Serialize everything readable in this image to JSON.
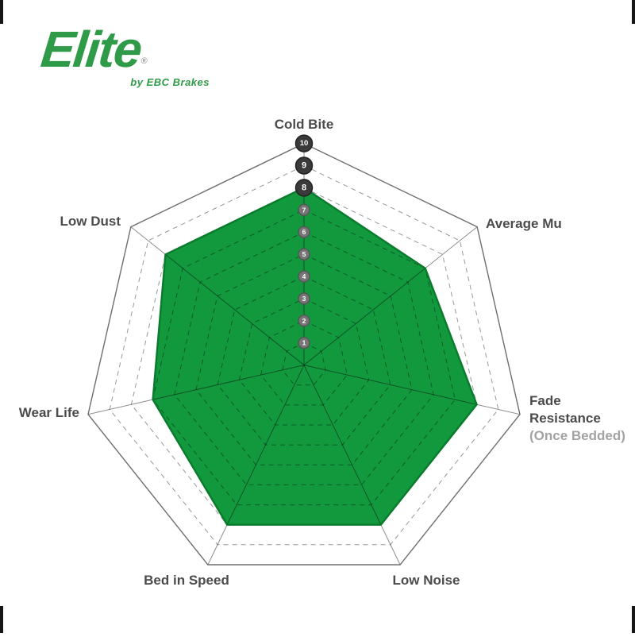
{
  "page": {
    "background": "#ffffff"
  },
  "logo": {
    "brand": "Elite",
    "registered": "®",
    "tagline": "by EBC Brakes",
    "color": "#2f9b48"
  },
  "chart_data": {
    "type": "radar",
    "title": "",
    "axes": [
      {
        "label": "Cold Bite",
        "value": 8
      },
      {
        "label": "Average Mu",
        "value": 7
      },
      {
        "label": "Fade Resistance",
        "sublabel": "(Once Bedded)",
        "value": 8
      },
      {
        "label": "Low Noise",
        "value": 8
      },
      {
        "label": "Bed in Speed",
        "value": 8
      },
      {
        "label": "Wear Life",
        "value": 7
      },
      {
        "label": "Low Dust",
        "value": 8
      }
    ],
    "scale": {
      "min": 0,
      "max": 10,
      "ticks": [
        10,
        9,
        8,
        7,
        6,
        5,
        4,
        3,
        2,
        1
      ]
    },
    "grid": {
      "dashed_rings": [
        1,
        2,
        3,
        4,
        5,
        6,
        7,
        8,
        9
      ],
      "outer_ring": 10,
      "spokes": 7
    },
    "colors": {
      "fill": "#12993e",
      "fill_edge": "#0a7a2c",
      "grid_line": "#989898",
      "outer_line": "#6e6e6e",
      "badge_big": "#3a3a3a",
      "badge_small": "#767676",
      "badge_text": "#ffffff",
      "label_text": "#4b4b4b",
      "sublabel_text": "#a3a3a3"
    },
    "legend": null,
    "layout_hint": "7-axis heptagon radar, vertex up, tick badges 10..1 on the Cold Bite spoke"
  }
}
